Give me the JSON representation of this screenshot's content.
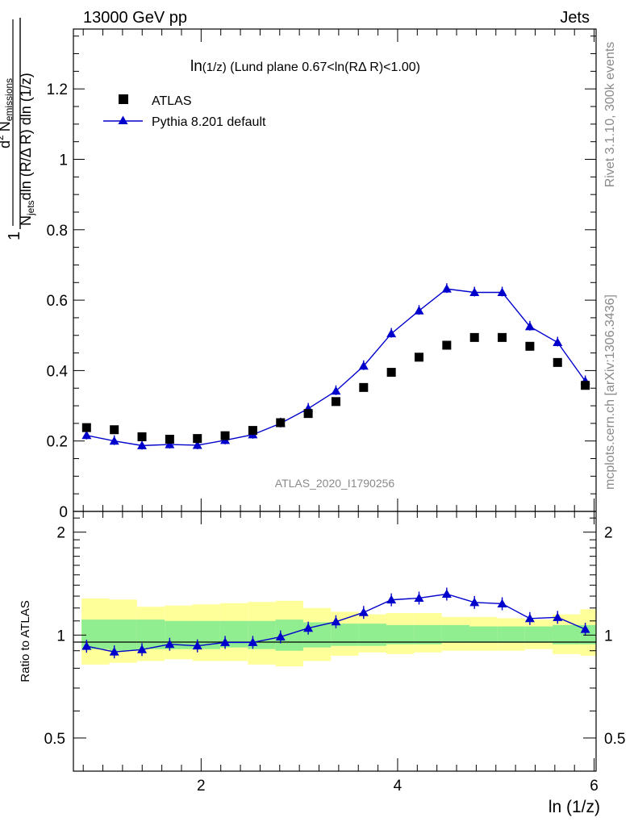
{
  "header": {
    "left_label": "13000 GeV pp",
    "right_label": "Jets"
  },
  "side_labels": {
    "rivet": "Rivet 3.1.10,  300k events",
    "mcplots": "mcplots.cern.ch [arXiv:1306.3436]"
  },
  "watermark": "ATLAS_2020_I1790256",
  "colors": {
    "mc": "#0000cc",
    "data": "#000000",
    "band_inner": "#90ee90",
    "band_outer": "#ffff99"
  },
  "chart_data": [
    {
      "type": "scatter",
      "panel": "main",
      "title": "ln(1/z) (Lund plane 0.67<ln(RΔ R)<1.00)",
      "title_parts": {
        "main": "ln",
        "small": "(1/z)",
        "rest": " (Lund plane 0.67<ln(RΔ R)<1.00)"
      },
      "ylabel_parts": {
        "one": "1",
        "d2": "d",
        "sup2": "2",
        "N": "N",
        "emissions": "emissions",
        "Njets": "N",
        "jets": "jets",
        "denom_rest": "dln (R/Δ R) dln (1/z)"
      },
      "ylim": [
        0,
        1.37
      ],
      "xlim": [
        0.7,
        6.02
      ],
      "y_ticks": [
        0,
        0.2,
        0.4,
        0.6,
        0.8,
        1,
        1.2
      ],
      "y_tick_labels": [
        "0",
        "0.2",
        "0.4",
        "0.6",
        "0.8",
        "1",
        "1.2"
      ],
      "legend_position": "top-left",
      "x": [
        0.834,
        1.116,
        1.398,
        1.68,
        1.962,
        2.244,
        2.526,
        2.808,
        3.09,
        3.372,
        3.654,
        3.936,
        4.218,
        4.5,
        4.782,
        5.064,
        5.346,
        5.628,
        5.91
      ],
      "series": [
        {
          "name": "ATLAS",
          "marker": "square",
          "values": [
            0.238,
            0.232,
            0.212,
            0.205,
            0.207,
            0.215,
            0.23,
            0.252,
            0.278,
            0.312,
            0.352,
            0.395,
            0.438,
            0.472,
            0.494,
            0.494,
            0.469,
            0.423,
            0.358
          ]
        },
        {
          "name": "Pythia 8.201 default",
          "marker": "triangle",
          "values": [
            0.216,
            0.2,
            0.187,
            0.19,
            0.188,
            0.202,
            0.218,
            0.25,
            0.292,
            0.342,
            0.413,
            0.505,
            0.57,
            0.632,
            0.622,
            0.622,
            0.525,
            0.48,
            0.37
          ]
        }
      ]
    },
    {
      "type": "line",
      "panel": "ratio",
      "ylabel": "Ratio to ATLAS",
      "ylim": [
        0.4,
        2.3
      ],
      "log_y": true,
      "x_ticks": [
        2,
        4,
        6
      ],
      "x_tick_labels": [
        "2",
        "4",
        "6"
      ],
      "y_ticks": [
        0.5,
        1,
        2
      ],
      "y_tick_labels": [
        "0.5",
        "1",
        "2"
      ],
      "xlabel": "ln (1/z)",
      "x_edges": [
        0.693,
        0.975,
        1.257,
        1.539,
        1.821,
        2.103,
        2.385,
        2.667,
        2.949,
        3.231,
        3.513,
        3.795,
        4.077,
        4.359,
        4.641,
        4.923,
        5.205,
        5.487,
        5.769,
        6.051
      ],
      "band_inner": [
        [
          0.91,
          1.11
        ],
        [
          0.9,
          1.11
        ],
        [
          0.91,
          1.11
        ],
        [
          0.91,
          1.1
        ],
        [
          0.91,
          1.1
        ],
        [
          0.92,
          1.1
        ],
        [
          0.91,
          1.1
        ],
        [
          0.9,
          1.11
        ],
        [
          0.92,
          1.09
        ],
        [
          0.93,
          1.08
        ],
        [
          0.93,
          1.08
        ],
        [
          0.94,
          1.07
        ],
        [
          0.94,
          1.07
        ],
        [
          0.95,
          1.07
        ],
        [
          0.95,
          1.06
        ],
        [
          0.95,
          1.06
        ],
        [
          0.95,
          1.06
        ],
        [
          0.94,
          1.07
        ],
        [
          0.94,
          1.07
        ]
      ],
      "band_outer": [
        [
          0.82,
          1.28
        ],
        [
          0.83,
          1.27
        ],
        [
          0.84,
          1.21
        ],
        [
          0.85,
          1.22
        ],
        [
          0.84,
          1.23
        ],
        [
          0.84,
          1.24
        ],
        [
          0.82,
          1.25
        ],
        [
          0.81,
          1.26
        ],
        [
          0.84,
          1.2
        ],
        [
          0.87,
          1.17
        ],
        [
          0.89,
          1.15
        ],
        [
          0.88,
          1.16
        ],
        [
          0.89,
          1.16
        ],
        [
          0.9,
          1.13
        ],
        [
          0.9,
          1.13
        ],
        [
          0.9,
          1.12
        ],
        [
          0.91,
          1.11
        ],
        [
          0.88,
          1.15
        ],
        [
          0.87,
          1.19
        ]
      ],
      "x": [
        0.834,
        1.116,
        1.398,
        1.68,
        1.962,
        2.244,
        2.526,
        2.808,
        3.09,
        3.372,
        3.654,
        3.936,
        4.218,
        4.5,
        4.782,
        5.064,
        5.346,
        5.628,
        5.91
      ],
      "series": [
        {
          "name": "Pythia 8.201 default",
          "values": [
            0.928,
            0.893,
            0.907,
            0.94,
            0.93,
            0.952,
            0.952,
            0.988,
            1.048,
            1.094,
            1.165,
            1.268,
            1.283,
            1.318,
            1.246,
            1.235,
            1.118,
            1.127,
            1.04
          ]
        }
      ]
    }
  ]
}
